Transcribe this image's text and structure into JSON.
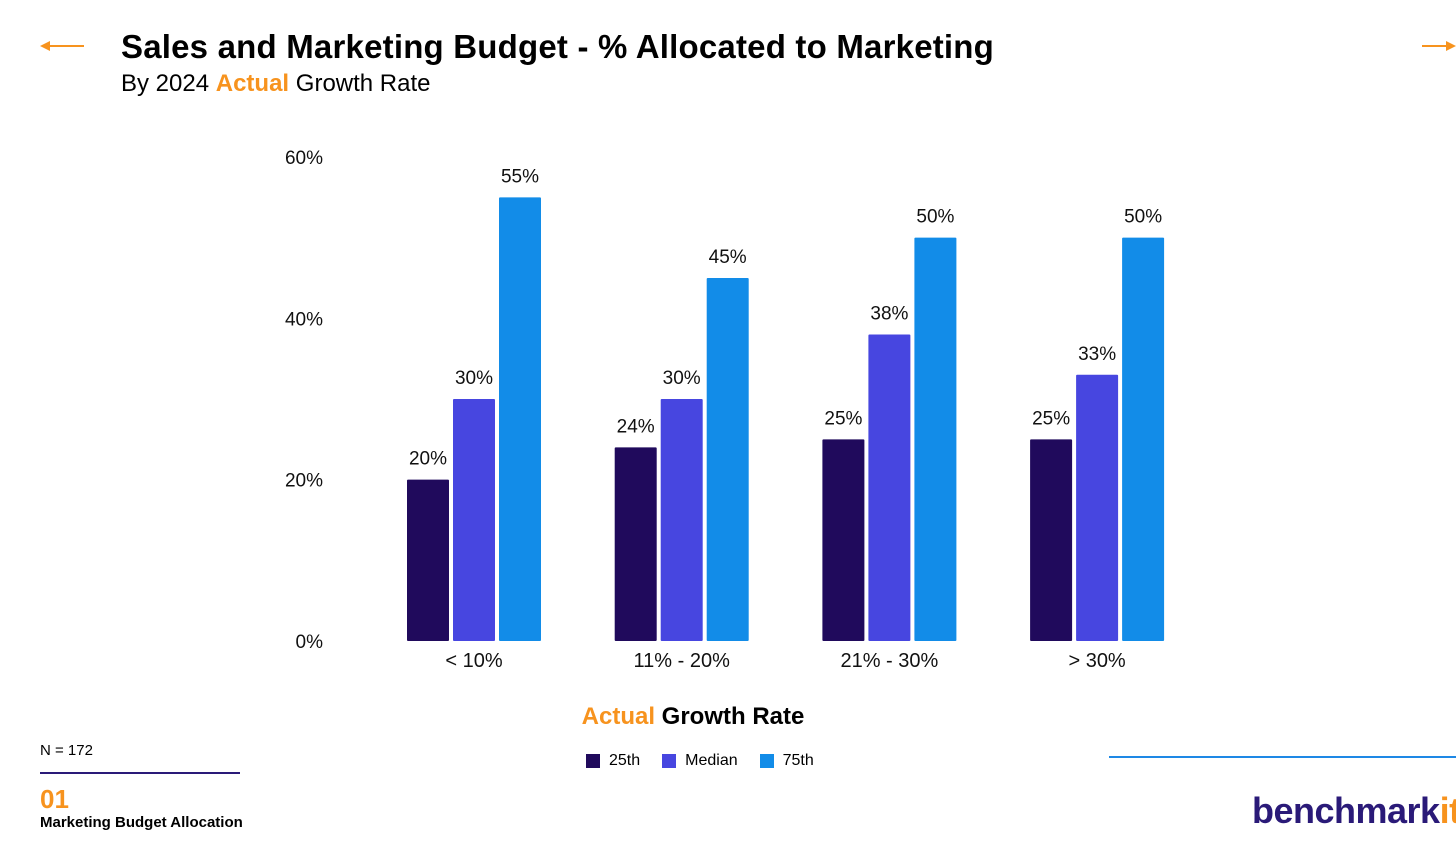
{
  "header": {
    "title": "Sales and Marketing Budget  - % Allocated to Marketing",
    "subtitle_prefix": "By 2024",
    "subtitle_accent": "Actual",
    "subtitle_suffix": "Growth Rate"
  },
  "colors": {
    "accent": "#F7931E",
    "brand": "#2A1A78",
    "series_25th": "#200A5C",
    "series_median": "#4746E0",
    "series_75th": "#128CE8",
    "line_blue": "#1E88E5"
  },
  "chart_data": {
    "type": "bar",
    "title": "Sales and Marketing Budget  - % Allocated to Marketing",
    "subtitle": "By 2024 Actual Growth Rate",
    "xlabel_accent": "Actual",
    "xlabel_rest": "Growth Rate",
    "ylabel": "",
    "ylim": [
      0,
      60
    ],
    "yticks": [
      0,
      20,
      40,
      60
    ],
    "ytick_labels": [
      "0%",
      "20%",
      "40%",
      "60%"
    ],
    "categories": [
      "< 10%",
      "11% - 20%",
      "21% - 30%",
      "> 30%"
    ],
    "series": [
      {
        "name": "25th",
        "values": [
          20,
          24,
          25,
          25
        ],
        "labels": [
          "20%",
          "24%",
          "25%",
          "25%"
        ]
      },
      {
        "name": "Median",
        "values": [
          30,
          30,
          38,
          33
        ],
        "labels": [
          "30%",
          "30%",
          "38%",
          "33%"
        ]
      },
      {
        "name": "75th",
        "values": [
          55,
          45,
          50,
          50
        ],
        "labels": [
          "55%",
          "45%",
          "50%",
          "50%"
        ]
      }
    ],
    "legend_position": "bottom-center",
    "grid": false
  },
  "footer": {
    "n_label": "N = 172",
    "section_number": "01",
    "section_name": "Marketing Budget Allocation",
    "logo_main": "benchmark",
    "logo_accent": "it"
  }
}
